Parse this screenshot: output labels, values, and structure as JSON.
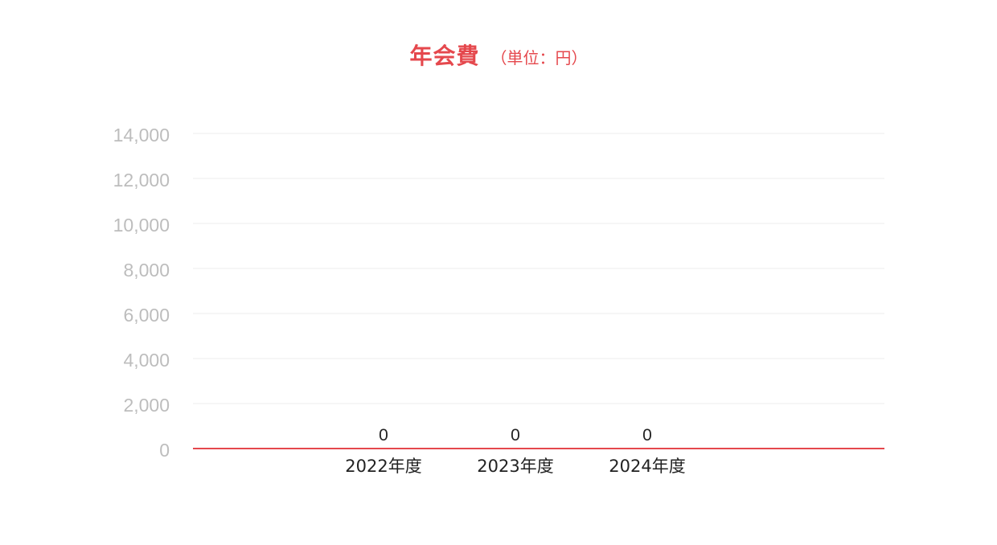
{
  "chart_data": {
    "type": "bar",
    "title": "年会費",
    "subtitle": "（単位：円）",
    "categories": [
      "2022年度",
      "2023年度",
      "2024年度"
    ],
    "values": [
      0,
      0,
      0
    ],
    "ylim": [
      0,
      14000
    ],
    "yticks": [
      0,
      2000,
      4000,
      6000,
      8000,
      10000,
      12000,
      14000
    ],
    "ytick_labels": [
      "0",
      "2,000",
      "4,000",
      "6,000",
      "8,000",
      "10,000",
      "12,000",
      "14,000"
    ],
    "data_labels": [
      "0",
      "0",
      "0"
    ],
    "xlabel": "",
    "ylabel": "",
    "grid": true,
    "colors": {
      "title": "#e5484d",
      "baseline": "#e5484d",
      "grid": "#eeeeee",
      "ytick": "#bdbdbd",
      "text": "#222222"
    }
  }
}
